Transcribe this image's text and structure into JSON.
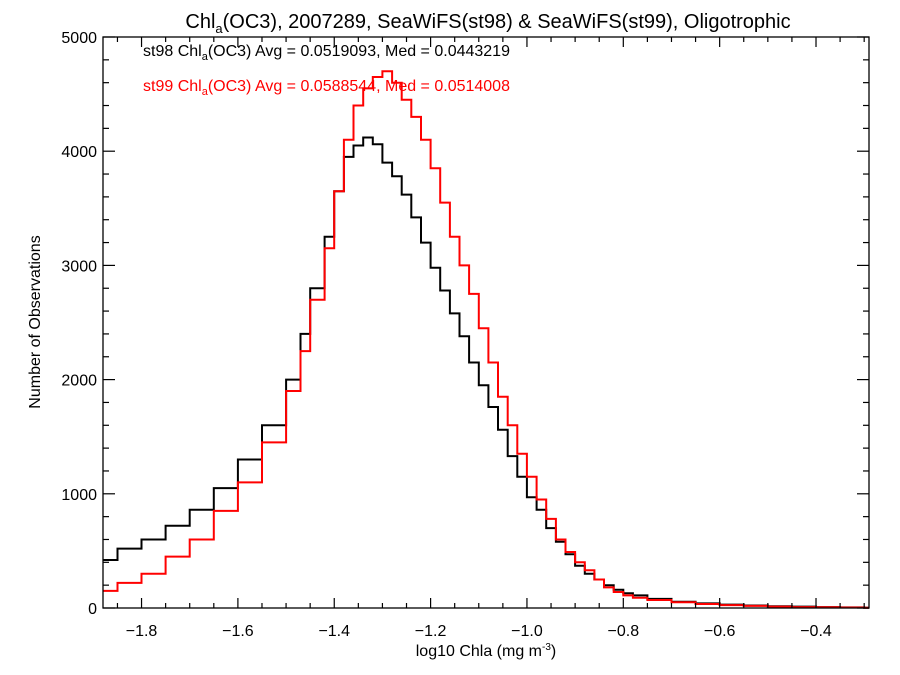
{
  "title": {
    "prefix": "Chl",
    "sub": "a",
    "rest": "(OC3), 2007289, SeaWiFS(st98) & SeaWiFS(st99), Oligotrophic"
  },
  "axes": {
    "xlabel_pre": "log10 Chla (mg m",
    "xlabel_sup": "-3",
    "xlabel_post": ")",
    "ylabel": "Number of Observations"
  },
  "annotations": [
    {
      "pre": "st98 Chl",
      "sub": "a",
      "post": "(OC3) Avg = 0.0519093, Med = 0.0443219",
      "color": "#000000"
    },
    {
      "pre": "st99 Chl",
      "sub": "a",
      "post": "(OC3) Avg = 0.0588544, Med = 0.0514008",
      "color": "#ff0000"
    }
  ],
  "chart_data": {
    "type": "line",
    "step": true,
    "xlim": [
      -1.88,
      -0.29
    ],
    "ylim": [
      0,
      5000
    ],
    "xticks": [
      -1.8,
      -1.6,
      -1.4,
      -1.2,
      -1.0,
      -0.8,
      -0.6,
      -0.4
    ],
    "xtick_labels": [
      "−1.8",
      "−1.6",
      "−1.4",
      "−1.2",
      "−1.0",
      "−0.8",
      "−0.6",
      "−0.4"
    ],
    "yticks": [
      0,
      1000,
      2000,
      3000,
      4000,
      5000
    ],
    "ytick_labels": [
      "0",
      "1000",
      "2000",
      "3000",
      "4000",
      "5000"
    ],
    "grid": false,
    "series": [
      {
        "name": "st98",
        "color": "#000000",
        "x": [
          -1.88,
          -1.85,
          -1.8,
          -1.75,
          -1.7,
          -1.65,
          -1.6,
          -1.55,
          -1.5,
          -1.47,
          -1.45,
          -1.42,
          -1.4,
          -1.38,
          -1.36,
          -1.34,
          -1.32,
          -1.3,
          -1.28,
          -1.26,
          -1.24,
          -1.22,
          -1.2,
          -1.18,
          -1.16,
          -1.14,
          -1.12,
          -1.1,
          -1.08,
          -1.06,
          -1.04,
          -1.02,
          -1.0,
          -0.98,
          -0.96,
          -0.94,
          -0.92,
          -0.9,
          -0.88,
          -0.86,
          -0.84,
          -0.82,
          -0.8,
          -0.78,
          -0.75,
          -0.7,
          -0.65,
          -0.6,
          -0.55,
          -0.5,
          -0.45,
          -0.4,
          -0.35,
          -0.3
        ],
        "y": [
          420,
          520,
          600,
          720,
          860,
          1050,
          1300,
          1600,
          2000,
          2400,
          2800,
          3250,
          3650,
          3950,
          4050,
          4120,
          4060,
          3900,
          3780,
          3620,
          3420,
          3200,
          2980,
          2780,
          2580,
          2380,
          2150,
          1950,
          1760,
          1560,
          1330,
          1150,
          970,
          860,
          700,
          580,
          470,
          370,
          300,
          250,
          200,
          160,
          130,
          110,
          80,
          55,
          40,
          30,
          22,
          16,
          12,
          8,
          5,
          3
        ]
      },
      {
        "name": "st99",
        "color": "#ff0000",
        "x": [
          -1.88,
          -1.85,
          -1.8,
          -1.75,
          -1.7,
          -1.65,
          -1.6,
          -1.55,
          -1.5,
          -1.47,
          -1.45,
          -1.42,
          -1.4,
          -1.38,
          -1.36,
          -1.34,
          -1.32,
          -1.3,
          -1.28,
          -1.26,
          -1.24,
          -1.22,
          -1.2,
          -1.18,
          -1.16,
          -1.14,
          -1.12,
          -1.1,
          -1.08,
          -1.06,
          -1.04,
          -1.02,
          -1.0,
          -0.98,
          -0.96,
          -0.94,
          -0.92,
          -0.9,
          -0.88,
          -0.86,
          -0.84,
          -0.82,
          -0.8,
          -0.78,
          -0.75,
          -0.7,
          -0.65,
          -0.6,
          -0.55,
          -0.5,
          -0.45,
          -0.4,
          -0.35,
          -0.3
        ],
        "y": [
          150,
          220,
          300,
          450,
          600,
          850,
          1100,
          1450,
          1900,
          2250,
          2700,
          3150,
          3650,
          4100,
          4400,
          4550,
          4650,
          4700,
          4600,
          4450,
          4300,
          4100,
          3850,
          3550,
          3250,
          3000,
          2750,
          2450,
          2150,
          1850,
          1600,
          1350,
          1150,
          950,
          780,
          600,
          490,
          400,
          330,
          250,
          180,
          140,
          110,
          90,
          70,
          50,
          35,
          25,
          18,
          12,
          8,
          6,
          4,
          2
        ]
      }
    ]
  }
}
